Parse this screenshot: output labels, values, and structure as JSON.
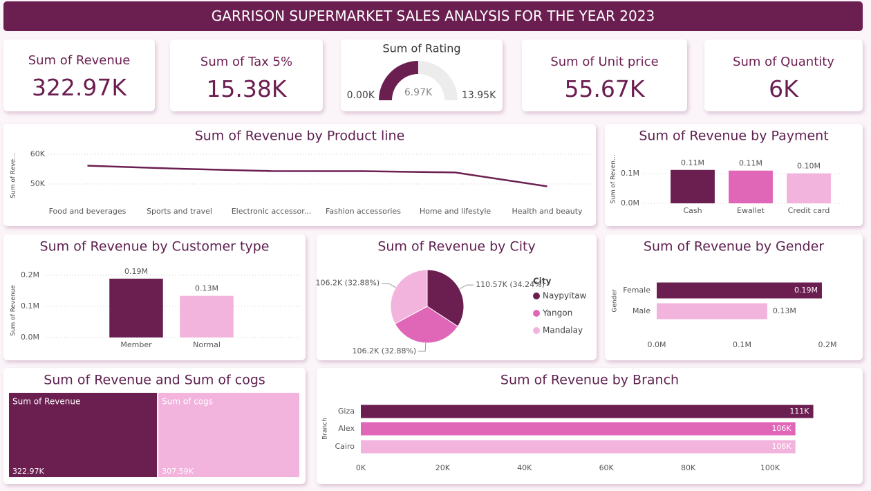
{
  "header": {
    "title": "GARRISON SUPERMARKET SALES ANALYSIS FOR THE YEAR 2023"
  },
  "cards": [
    {
      "label": "Sum of Revenue",
      "value": "322.97K"
    },
    {
      "label": "Sum of Tax 5%",
      "value": "15.38K"
    },
    {
      "label": "Sum of Unit price",
      "value": "55.67K"
    },
    {
      "label": "Sum of Quantity",
      "value": "6K"
    }
  ],
  "chart_data": [
    {
      "type": "gauge",
      "title": "Sum of Rating",
      "values": [
        6970
      ],
      "value_labels": [
        "6.97K"
      ],
      "ylim": [
        0,
        13950
      ],
      "yticks": [
        {
          "value": 0,
          "label": "0.00K"
        },
        {
          "value": 13950,
          "label": "13.95K"
        }
      ],
      "color": "#6b1e50",
      "track_color": "#ececec"
    },
    {
      "type": "line",
      "title": "Sum of Revenue by Product line",
      "y_label": "Sum of Reve...",
      "categories": [
        "Food and beverages",
        "Sports and travel",
        "Electronic accessor...",
        "Fashion accessories",
        "Home and lifestyle",
        "Health and beauty"
      ],
      "values": [
        56144.84,
        55122.83,
        54337.53,
        54305.9,
        53861.91,
        49193.74
      ],
      "color": "#6b1e50",
      "ylim": [
        46000,
        62000
      ],
      "yticks": [
        {
          "value": 50000,
          "label": "50K"
        },
        {
          "value": 60000,
          "label": "60K"
        }
      ],
      "grid": true
    },
    {
      "type": "bar",
      "title": "Sum of Revenue by Payment",
      "y_label": "Sum of Reven...",
      "categories": [
        "Cash",
        "Ewallet",
        "Credit card"
      ],
      "values": [
        112206.57,
        109993.11,
        100767.07
      ],
      "value_labels": [
        "0.11M",
        "0.11M",
        "0.10M"
      ],
      "colors": [
        "#6b1e50",
        "#e066b8",
        "#f2b3dc"
      ],
      "ylim": [
        0,
        150000
      ],
      "yticks": [
        {
          "value": 0,
          "label": "0.0M"
        },
        {
          "value": 100000,
          "label": "0.1M"
        }
      ],
      "grid": true
    },
    {
      "type": "bar",
      "title": "Sum of Revenue by Customer type",
      "y_label": "Sum of Revenue",
      "categories": [
        "Member",
        "Normal"
      ],
      "values": [
        189000,
        133970
      ],
      "value_labels": [
        "0.19M",
        "0.13M"
      ],
      "colors": [
        "#6b1e50",
        "#f2b3dc"
      ],
      "ylim": [
        0,
        220000
      ],
      "yticks": [
        {
          "value": 0,
          "label": "0.0M"
        },
        {
          "value": 100000,
          "label": "0.1M"
        },
        {
          "value": 200000,
          "label": "0.2M"
        }
      ],
      "grid": true
    },
    {
      "type": "pie",
      "title": "Sum of Revenue by City",
      "legend_title": "City",
      "categories": [
        "Naypyitaw",
        "Yangon",
        "Mandalay"
      ],
      "values": [
        110570,
        106200,
        106200
      ],
      "value_labels": [
        "110.57K (34.24%)",
        "106.2K (32.88%)",
        "106.2K (32.88%)"
      ],
      "colors": [
        "#6b1e50",
        "#e066b8",
        "#f2b3dc"
      ]
    },
    {
      "type": "barh",
      "title": "Sum of Revenue by Gender",
      "y_label": "Gender",
      "categories": [
        "Female",
        "Male"
      ],
      "values": [
        193500,
        129470
      ],
      "value_labels": [
        "0.19M",
        "0.13M"
      ],
      "colors": [
        "#6b1e50",
        "#f2b3dc"
      ],
      "xlim": [
        0,
        200000
      ],
      "xticks": [
        {
          "value": 0,
          "label": "0.0M"
        },
        {
          "value": 100000,
          "label": "0.1M"
        },
        {
          "value": 200000,
          "label": "0.2M"
        }
      ],
      "grid": false
    },
    {
      "type": "treemap",
      "title": "Sum of Revenue and Sum of cogs",
      "categories": [
        "Sum of Revenue",
        "Sum of cogs"
      ],
      "values": [
        322970,
        307590
      ],
      "value_labels": [
        "322.97K",
        "307.59K"
      ],
      "colors": [
        "#6b1e50",
        "#f2b3dc"
      ]
    },
    {
      "type": "barh",
      "title": "Sum of Revenue by Branch",
      "y_label": "Branch",
      "categories": [
        "Giza",
        "Alex",
        "Cairo"
      ],
      "values": [
        110570,
        106200,
        106200
      ],
      "value_labels": [
        "111K",
        "106K",
        "106K"
      ],
      "colors": [
        "#6b1e50",
        "#e066b8",
        "#f2b3dc"
      ],
      "xlim": [
        0,
        112000
      ],
      "xticks": [
        {
          "value": 0,
          "label": "0K"
        },
        {
          "value": 20000,
          "label": "20K"
        },
        {
          "value": 40000,
          "label": "40K"
        },
        {
          "value": 60000,
          "label": "60K"
        },
        {
          "value": 80000,
          "label": "80K"
        },
        {
          "value": 100000,
          "label": "100K"
        }
      ],
      "grid": false
    }
  ]
}
